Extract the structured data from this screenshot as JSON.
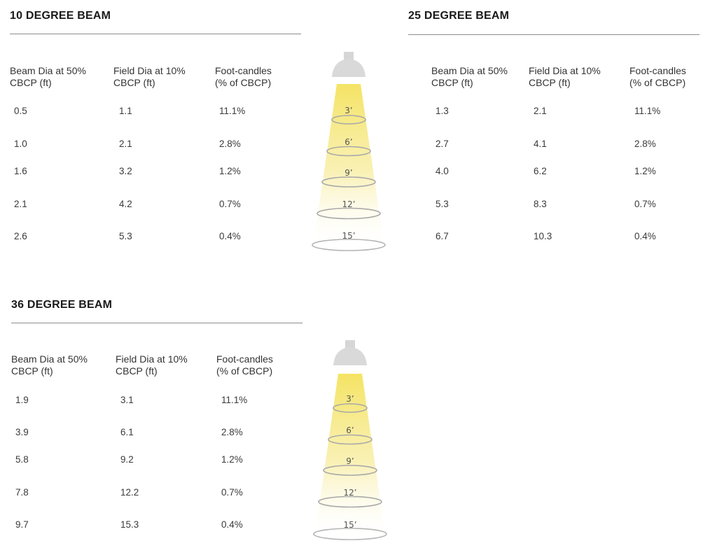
{
  "sections": [
    {
      "title": "10 DEGREE BEAM",
      "headers": [
        {
          "line1": "Beam Dia at 50%",
          "line2": "CBCP (ft)"
        },
        {
          "line1": "Field Dia at 10%",
          "line2": "CBCP (ft)"
        },
        {
          "line1": "Foot-candles",
          "line2": "(% of CBCP)"
        }
      ],
      "rows": [
        [
          "0.5",
          "1.1",
          "11.1%"
        ],
        [
          "1.0",
          "2.1",
          "2.8%"
        ],
        [
          "1.6",
          "3.2",
          "1.2%"
        ],
        [
          "2.1",
          "4.2",
          "0.7%"
        ],
        [
          "2.6",
          "5.3",
          "0.4%"
        ]
      ]
    },
    {
      "title": "25 DEGREE BEAM",
      "headers": [
        {
          "line1": "Beam Dia at 50%",
          "line2": "CBCP (ft)"
        },
        {
          "line1": "Field Dia at 10%",
          "line2": "CBCP (ft)"
        },
        {
          "line1": "Foot-candles",
          "line2": "(% of CBCP)"
        }
      ],
      "rows": [
        [
          "1.3",
          "2.1",
          "11.1%"
        ],
        [
          "2.7",
          "4.1",
          "2.8%"
        ],
        [
          "4.0",
          "6.2",
          "1.2%"
        ],
        [
          "5.3",
          "8.3",
          "0.7%"
        ],
        [
          "6.7",
          "10.3",
          "0.4%"
        ]
      ]
    },
    {
      "title": "36 DEGREE BEAM",
      "headers": [
        {
          "line1": "Beam Dia at 50%",
          "line2": "CBCP (ft)"
        },
        {
          "line1": "Field Dia at 10%",
          "line2": "CBCP (ft)"
        },
        {
          "line1": "Foot-candles",
          "line2": "(% of CBCP)"
        }
      ],
      "rows": [
        [
          "1.9",
          "3.1",
          "11.1%"
        ],
        [
          "3.9",
          "6.1",
          "2.8%"
        ],
        [
          "5.8",
          "9.2",
          "1.2%"
        ],
        [
          "7.8",
          "12.2",
          "0.7%"
        ],
        [
          "9.7",
          "15.3",
          "0.4%"
        ]
      ]
    }
  ],
  "beam_diagram": {
    "distances": [
      "3’",
      "6’",
      "9’",
      "12’",
      "15’"
    ],
    "colors": {
      "light": "#f6e98a",
      "fixture": "#d6d6d6",
      "ring": "#a9a9a9"
    }
  }
}
